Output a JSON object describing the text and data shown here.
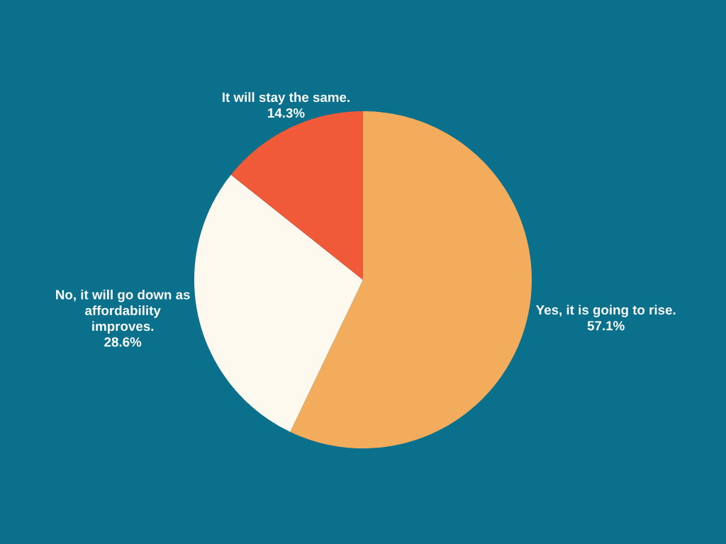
{
  "chart_data": {
    "type": "pie",
    "categories": [
      "Yes, it is going to rise.",
      "No, it will go down as\naffordability\nimproves.",
      "It will stay the same."
    ],
    "values": [
      57.1,
      28.6,
      14.3
    ],
    "colors": [
      "#f3ac5c",
      "#fef9ef",
      "#f05a38"
    ],
    "value_labels": [
      "57.1%",
      "28.6%",
      "14.3%"
    ]
  }
}
